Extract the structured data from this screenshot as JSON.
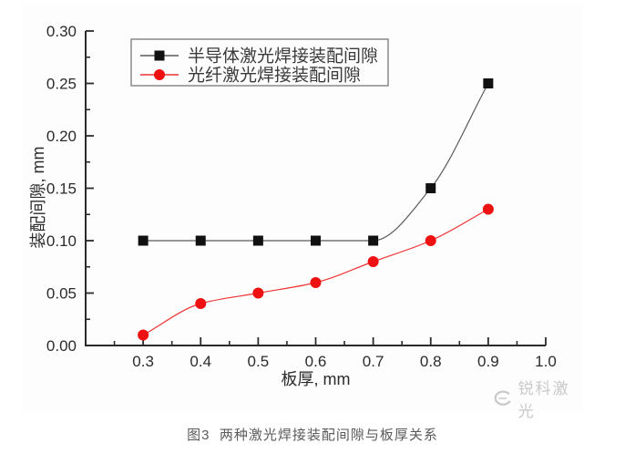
{
  "figure": {
    "caption": "图3  两种激光焊接装配间隙与板厚关系",
    "watermark": {
      "text": "锐科激光"
    }
  },
  "colors": {
    "axis": "#2b2b2b",
    "tick_label": "#2b2b2b",
    "legend_text": "#3a3a3a",
    "legend_border": "#8a8a8a",
    "caption_text": "#5a5a5a",
    "watermark": "#c9c9c9",
    "series1_marker": "#111111",
    "series1_line": "#5a5a5a",
    "series2_marker": "#ee1111",
    "series2_line": "#ee3333"
  },
  "chart_data": {
    "type": "line",
    "title": "",
    "xlabel": "板厚, mm",
    "ylabel": "装配间隙, mm",
    "x": [
      0.3,
      0.4,
      0.5,
      0.6,
      0.7,
      0.8,
      0.9
    ],
    "series": [
      {
        "name": "半导体激光焊接装配间隙",
        "marker": "square",
        "marker_color": "#111111",
        "line_color": "#5a5a5a",
        "values": [
          0.1,
          0.1,
          0.1,
          0.1,
          0.1,
          0.15,
          0.25
        ]
      },
      {
        "name": "光纤激光焊接装配间隙",
        "marker": "circle",
        "marker_color": "#ee1111",
        "line_color": "#ee3333",
        "values": [
          0.01,
          0.04,
          0.05,
          0.06,
          0.08,
          0.1,
          0.13
        ]
      }
    ],
    "xlim": [
      0.2,
      1.0
    ],
    "ylim": [
      0.0,
      0.3
    ],
    "x_major_ticks": [
      0.3,
      0.4,
      0.5,
      0.6,
      0.7,
      0.8,
      0.9,
      1.0
    ],
    "x_tick_labels": [
      "0.3",
      "0.4",
      "0.5",
      "0.6",
      "0.7",
      "0.8",
      "0.9",
      "1.0"
    ],
    "x_minor_step": 0.05,
    "y_major_ticks": [
      0.0,
      0.05,
      0.1,
      0.15,
      0.2,
      0.25,
      0.3
    ],
    "y_tick_labels": [
      "0.00",
      "0.05",
      "0.10",
      "0.15",
      "0.20",
      "0.25",
      "0.30"
    ],
    "y_minor_step": 0.025,
    "grid": false,
    "legend_position": "top-left-inside",
    "curve": "smooth"
  }
}
